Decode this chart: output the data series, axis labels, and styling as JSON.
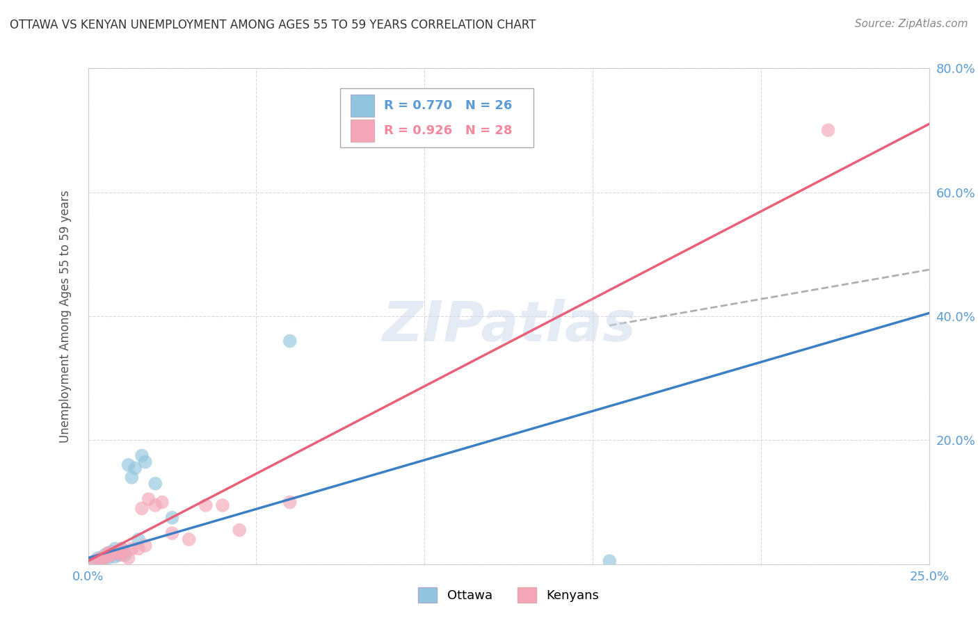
{
  "title": "OTTAWA VS KENYAN UNEMPLOYMENT AMONG AGES 55 TO 59 YEARS CORRELATION CHART",
  "source": "Source: ZipAtlas.com",
  "ylabel": "Unemployment Among Ages 55 to 59 years",
  "xlim": [
    0.0,
    0.25
  ],
  "ylim": [
    0.0,
    0.8
  ],
  "x_ticks": [
    0.0,
    0.05,
    0.1,
    0.15,
    0.2,
    0.25
  ],
  "x_tick_labels": [
    "0.0%",
    "",
    "",
    "",
    "",
    "25.0%"
  ],
  "y_ticks": [
    0.0,
    0.2,
    0.4,
    0.6,
    0.8
  ],
  "y_tick_labels": [
    "",
    "20.0%",
    "40.0%",
    "60.0%",
    "80.0%"
  ],
  "ottawa_color": "#92c5de",
  "kenyan_color": "#f4a6b8",
  "ottawa_line_color": "#3b7fc4",
  "kenyan_line_color": "#e8607a",
  "dashed_line_color": "#b0b0b0",
  "legend_R_ottawa": "R = 0.770",
  "legend_N_ottawa": "N = 26",
  "legend_R_kenyan": "R = 0.926",
  "legend_N_kenyan": "N = 28",
  "background_color": "#ffffff",
  "watermark": "ZIPatlas",
  "title_color": "#333333",
  "tick_color": "#5b9bd5",
  "kenyan_legend_color": "#f4879c",
  "ottawa_scatter_x": [
    0.002,
    0.003,
    0.004,
    0.005,
    0.005,
    0.006,
    0.006,
    0.007,
    0.007,
    0.008,
    0.008,
    0.009,
    0.009,
    0.01,
    0.01,
    0.011,
    0.012,
    0.013,
    0.014,
    0.015,
    0.016,
    0.017,
    0.02,
    0.025,
    0.06,
    0.155
  ],
  "ottawa_scatter_y": [
    0.005,
    0.01,
    0.01,
    0.012,
    0.015,
    0.01,
    0.018,
    0.015,
    0.02,
    0.012,
    0.025,
    0.015,
    0.02,
    0.02,
    0.025,
    0.015,
    0.16,
    0.14,
    0.155,
    0.04,
    0.175,
    0.165,
    0.13,
    0.075,
    0.36,
    0.005
  ],
  "kenyan_scatter_x": [
    0.002,
    0.003,
    0.004,
    0.005,
    0.005,
    0.006,
    0.006,
    0.007,
    0.008,
    0.009,
    0.01,
    0.01,
    0.011,
    0.012,
    0.013,
    0.015,
    0.016,
    0.017,
    0.018,
    0.02,
    0.022,
    0.025,
    0.03,
    0.035,
    0.04,
    0.045,
    0.06,
    0.22
  ],
  "kenyan_scatter_y": [
    0.005,
    0.008,
    0.01,
    0.01,
    0.012,
    0.015,
    0.018,
    0.015,
    0.02,
    0.018,
    0.015,
    0.025,
    0.02,
    0.01,
    0.025,
    0.025,
    0.09,
    0.03,
    0.105,
    0.095,
    0.1,
    0.05,
    0.04,
    0.095,
    0.095,
    0.055,
    0.1,
    0.7
  ],
  "ottawa_trend_x": [
    0.0,
    0.25
  ],
  "ottawa_trend_y": [
    0.01,
    0.405
  ],
  "kenyan_trend_x": [
    0.0,
    0.25
  ],
  "kenyan_trend_y": [
    0.005,
    0.71
  ],
  "dashed_trend_x": [
    0.155,
    0.25
  ],
  "dashed_trend_y": [
    0.385,
    0.475
  ]
}
